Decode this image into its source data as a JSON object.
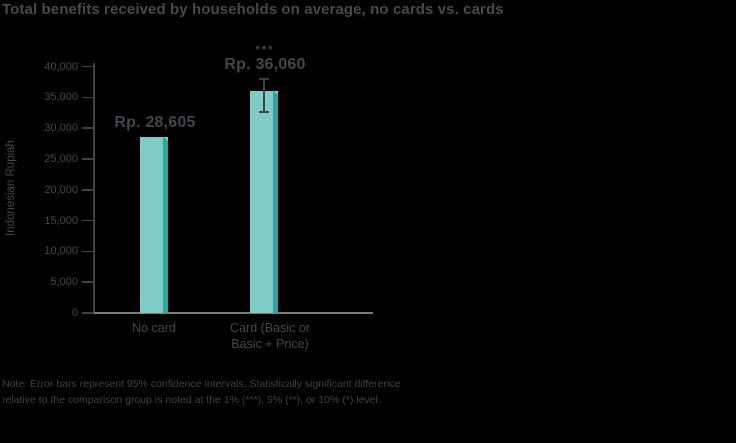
{
  "chart_data": {
    "type": "bar",
    "title": "Total benefits received by households on average, no cards vs. cards",
    "ylabel": "Indonesian Rupiah",
    "xlabel": "",
    "ylim": [
      0,
      40000
    ],
    "ytick_values": [
      0,
      5000,
      10000,
      15000,
      20000,
      25000,
      30000,
      35000,
      40000
    ],
    "ytick_labels": [
      "0",
      "5,000",
      "10,000",
      "15,000",
      "20,000",
      "25,000",
      "30,000",
      "35,000",
      "40,000"
    ],
    "grid": "off",
    "legend": "none",
    "categories": [
      "No card",
      "Card (Basic or\nBasic + Price)"
    ],
    "values": [
      28605,
      36060
    ],
    "bars": [
      {
        "category": "No card",
        "value": 28605,
        "value_label": "Rp. 28,605",
        "significance": "",
        "error_bar": null
      },
      {
        "category": "Card (Basic or\nBasic + Price)",
        "value": 36060,
        "value_label": "Rp. 36,060",
        "significance": "***",
        "error_bar": {
          "low": 32600,
          "high": 38000
        }
      }
    ],
    "note": "Note: Error bars represent 95% confidence intervals. Statistically significant difference\nrelative to the comparison group is noted at the 1% (***), 5% (**), or 10% (*) level."
  },
  "colors": {
    "background": "#000000",
    "title_text": "#47494c",
    "axis_text": "#44464a",
    "axis_line": "#3f4246",
    "baseline": "#797c7e",
    "bar_fill": "#7fccc6",
    "bar_shade": "#2ea69e",
    "error_bar": "#3f4145",
    "note_text": "#3e4144"
  }
}
